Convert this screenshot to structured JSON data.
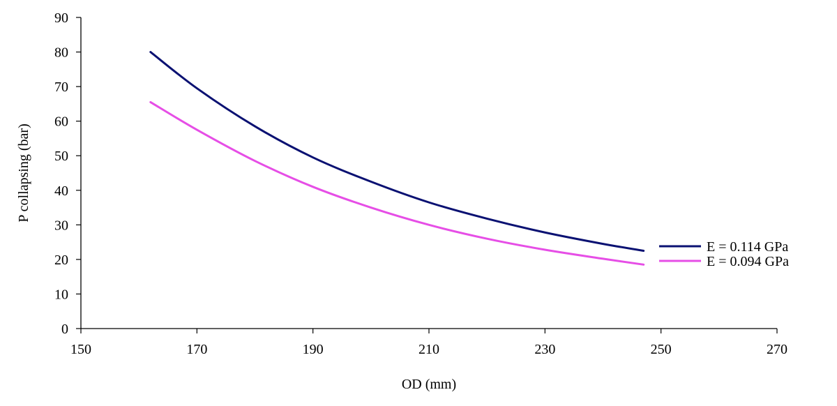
{
  "chart_data": {
    "type": "line",
    "xlabel": "OD (mm)",
    "ylabel": "P collapsing  (bar)",
    "xlim": [
      150,
      270
    ],
    "ylim": [
      0,
      90
    ],
    "x_ticks": [
      150,
      170,
      190,
      210,
      230,
      250,
      270
    ],
    "y_ticks": [
      0,
      10,
      20,
      30,
      40,
      50,
      60,
      70,
      80,
      90
    ],
    "grid": false,
    "legend_position": "right",
    "series": [
      {
        "name": "E = 0.114 GPa",
        "color": "#0a1172",
        "x": [
          162,
          170,
          180,
          190,
          200,
          210,
          220,
          230,
          240,
          247
        ],
        "y": [
          80,
          69.5,
          58.5,
          49.5,
          42.5,
          36.5,
          31.8,
          27.8,
          24.5,
          22.5
        ]
      },
      {
        "name": "E = 0.094 GPa",
        "color": "#e64ee6",
        "x": [
          162,
          170,
          180,
          190,
          200,
          210,
          220,
          230,
          240,
          247
        ],
        "y": [
          65.5,
          57.5,
          48.5,
          41,
          35,
          30,
          26,
          22.8,
          20.2,
          18.5
        ]
      }
    ]
  }
}
